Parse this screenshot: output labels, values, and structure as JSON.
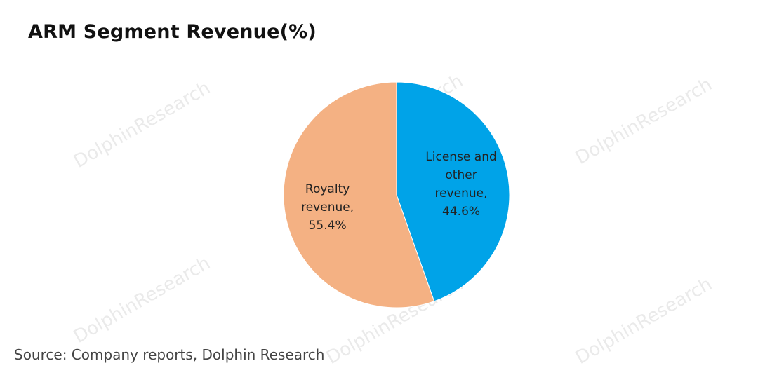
{
  "title": "ARM Segment Revenue(%)",
  "source": "Source: Company reports, Dolphin Research",
  "watermark": "DolphinResearch",
  "colors": {
    "royalty": "#F4B183",
    "license": "#00A3E8"
  },
  "chart_data": {
    "type": "pie",
    "title": "ARM Segment Revenue(%)",
    "slices": [
      {
        "name": "License and other revenue",
        "value": 44.6,
        "label_lines": [
          "License and",
          "other",
          "revenue,",
          "44.6%"
        ],
        "color": "#00A3E8"
      },
      {
        "name": "Royalty revenue",
        "value": 55.4,
        "label_lines": [
          "Royalty",
          "revenue,",
          "55.4%"
        ],
        "color": "#F4B183"
      }
    ]
  }
}
